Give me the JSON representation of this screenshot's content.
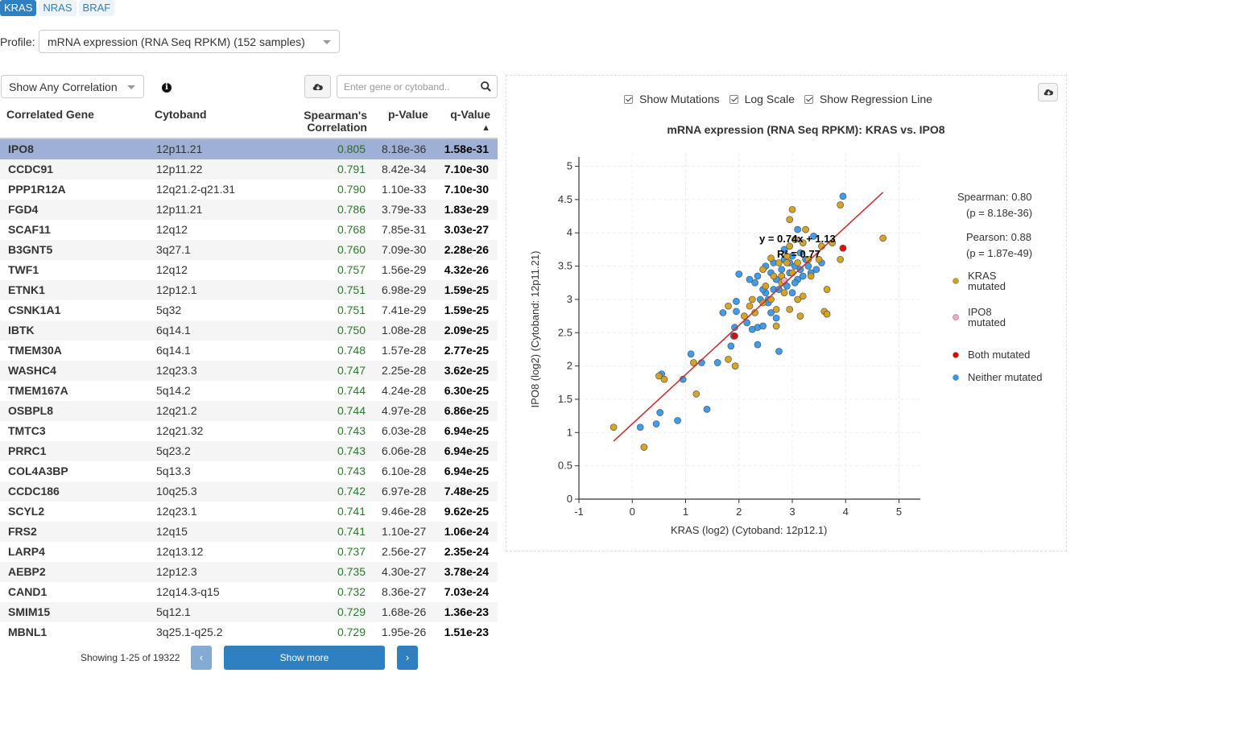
{
  "gene_tabs": [
    "KRAS",
    "NRAS",
    "BRAF"
  ],
  "active_gene_tab": 0,
  "profile": {
    "label": "Profile:",
    "selected": "mRNA expression (RNA Seq RPKM) (152 samples)"
  },
  "correlation_filter": {
    "selected": "Show Any Correlation"
  },
  "search": {
    "placeholder": "Enter gene or cytoband.."
  },
  "table": {
    "headers": {
      "gene": "Correlated Gene",
      "cytoband": "Cytoband",
      "spearman_line1": "Spearman's",
      "spearman_line2": "Correlation",
      "pvalue": "p-Value",
      "qvalue": "q-Value",
      "sort_indicator": "▲"
    },
    "rows": [
      {
        "gene": "IPO8",
        "cytoband": "12p11.21",
        "corr": "0.805",
        "p": "8.18e-36",
        "q": "1.58e-31"
      },
      {
        "gene": "CCDC91",
        "cytoband": "12p11.22",
        "corr": "0.791",
        "p": "8.42e-34",
        "q": "7.10e-30"
      },
      {
        "gene": "PPP1R12A",
        "cytoband": "12q21.2-q21.31",
        "corr": "0.790",
        "p": "1.10e-33",
        "q": "7.10e-30"
      },
      {
        "gene": "FGD4",
        "cytoband": "12p11.21",
        "corr": "0.786",
        "p": "3.79e-33",
        "q": "1.83e-29"
      },
      {
        "gene": "SCAF11",
        "cytoband": "12q12",
        "corr": "0.768",
        "p": "7.85e-31",
        "q": "3.03e-27"
      },
      {
        "gene": "B3GNT5",
        "cytoband": "3q27.1",
        "corr": "0.760",
        "p": "7.09e-30",
        "q": "2.28e-26"
      },
      {
        "gene": "TWF1",
        "cytoband": "12q12",
        "corr": "0.757",
        "p": "1.56e-29",
        "q": "4.32e-26"
      },
      {
        "gene": "ETNK1",
        "cytoband": "12p12.1",
        "corr": "0.751",
        "p": "6.98e-29",
        "q": "1.59e-25"
      },
      {
        "gene": "CSNK1A1",
        "cytoband": "5q32",
        "corr": "0.751",
        "p": "7.41e-29",
        "q": "1.59e-25"
      },
      {
        "gene": "IBTK",
        "cytoband": "6q14.1",
        "corr": "0.750",
        "p": "1.08e-28",
        "q": "2.09e-25"
      },
      {
        "gene": "TMEM30A",
        "cytoband": "6q14.1",
        "corr": "0.748",
        "p": "1.57e-28",
        "q": "2.77e-25"
      },
      {
        "gene": "WASHC4",
        "cytoband": "12q23.3",
        "corr": "0.747",
        "p": "2.25e-28",
        "q": "3.62e-25"
      },
      {
        "gene": "TMEM167A",
        "cytoband": "5q14.2",
        "corr": "0.744",
        "p": "4.24e-28",
        "q": "6.30e-25"
      },
      {
        "gene": "OSBPL8",
        "cytoband": "12q21.2",
        "corr": "0.744",
        "p": "4.97e-28",
        "q": "6.86e-25"
      },
      {
        "gene": "TMTC3",
        "cytoband": "12q21.32",
        "corr": "0.743",
        "p": "6.03e-28",
        "q": "6.94e-25"
      },
      {
        "gene": "PRRC1",
        "cytoband": "5q23.2",
        "corr": "0.743",
        "p": "6.06e-28",
        "q": "6.94e-25"
      },
      {
        "gene": "COL4A3BP",
        "cytoband": "5q13.3",
        "corr": "0.743",
        "p": "6.10e-28",
        "q": "6.94e-25"
      },
      {
        "gene": "CCDC186",
        "cytoband": "10q25.3",
        "corr": "0.742",
        "p": "6.97e-28",
        "q": "7.48e-25"
      },
      {
        "gene": "SCYL2",
        "cytoband": "12q23.1",
        "corr": "0.741",
        "p": "9.46e-28",
        "q": "9.62e-25"
      },
      {
        "gene": "FRS2",
        "cytoband": "12q15",
        "corr": "0.741",
        "p": "1.10e-27",
        "q": "1.06e-24"
      },
      {
        "gene": "LARP4",
        "cytoband": "12q13.12",
        "corr": "0.737",
        "p": "2.56e-27",
        "q": "2.35e-24"
      },
      {
        "gene": "AEBP2",
        "cytoband": "12p12.3",
        "corr": "0.735",
        "p": "4.30e-27",
        "q": "3.78e-24"
      },
      {
        "gene": "CAND1",
        "cytoband": "12q14.3-q15",
        "corr": "0.732",
        "p": "8.36e-27",
        "q": "7.03e-24"
      },
      {
        "gene": "SMIM15",
        "cytoband": "5q12.1",
        "corr": "0.729",
        "p": "1.68e-26",
        "q": "1.36e-23"
      },
      {
        "gene": "MBNL1",
        "cytoband": "3q25.1-q25.2",
        "corr": "0.729",
        "p": "1.95e-26",
        "q": "1.51e-23"
      }
    ],
    "selected_row": 0
  },
  "pagination": {
    "showing": "Showing 1-25 of 19322",
    "prev": "‹",
    "more": "Show more",
    "next": "›"
  },
  "plot_options": {
    "show_mutations": {
      "label": "Show Mutations",
      "checked": true
    },
    "log_scale": {
      "label": "Log Scale",
      "checked": true
    },
    "show_regression": {
      "label": "Show Regression Line",
      "checked": true
    }
  },
  "colors": {
    "accent": "#2f80c0",
    "kras_mutated": "#d4a017",
    "ipo8_mutated": "#f4a7c6",
    "both_mutated": "#e60000",
    "neither_mutated": "#3399ee",
    "regression": "#c83232",
    "corr_text": "#2a7a2a",
    "selected_row": "#9fb0d6"
  },
  "chart_data": {
    "type": "scatter",
    "title": "mRNA expression (RNA Seq RPKM): KRAS vs. IPO8",
    "xlabel": "KRAS (log2) (Cytoband: 12p12.1)",
    "ylabel": "IPO8 (log2) (Cytoband: 12p11.21)",
    "xlim": [
      -1,
      5.4
    ],
    "ylim": [
      0,
      5.2
    ],
    "xticks": [
      -1,
      0,
      1,
      2,
      3,
      4,
      5
    ],
    "yticks": [
      0,
      0.5,
      1,
      1.5,
      2,
      2.5,
      3,
      3.5,
      4,
      4.5,
      5
    ],
    "grid": true,
    "regression": {
      "slope": 0.74,
      "intercept": 1.13,
      "x_range": [
        -0.35,
        4.7
      ],
      "equation": "y = 0.74x + 1.13",
      "r2": "R² = 0.77"
    },
    "stats": {
      "spearman": "Spearman: 0.80",
      "spearman_p": "(p = 8.18e-36)",
      "pearson": "Pearson: 0.88",
      "pearson_p": "(p = 1.87e-49)"
    },
    "legend": [
      {
        "key": "kras",
        "line1": "KRAS",
        "line2": "mutated"
      },
      {
        "key": "ipo8",
        "line1": "IPO8",
        "line2": "mutated"
      },
      {
        "key": "both",
        "line1": "Both mutated",
        "line2": ""
      },
      {
        "key": "neither",
        "line1": "Neither mutated",
        "line2": ""
      }
    ],
    "series": [
      {
        "key": "kras",
        "points": [
          [
            -0.35,
            1.08
          ],
          [
            0.22,
            0.78
          ],
          [
            0.5,
            1.85
          ],
          [
            0.6,
            1.8
          ],
          [
            1.15,
            2.05
          ],
          [
            1.2,
            1.58
          ],
          [
            1.8,
            2.1
          ],
          [
            1.8,
            2.9
          ],
          [
            1.93,
            2.0
          ],
          [
            2.1,
            2.75
          ],
          [
            2.25,
            3.0
          ],
          [
            2.3,
            2.8
          ],
          [
            2.45,
            2.95
          ],
          [
            2.6,
            3.0
          ],
          [
            2.6,
            3.62
          ],
          [
            2.65,
            3.35
          ],
          [
            2.7,
            2.6
          ],
          [
            2.7,
            2.85
          ],
          [
            2.75,
            3.55
          ],
          [
            2.8,
            3.35
          ],
          [
            2.8,
            3.25
          ],
          [
            2.85,
            3.1
          ],
          [
            2.9,
            3.55
          ],
          [
            2.95,
            4.2
          ],
          [
            2.95,
            3.8
          ],
          [
            3.0,
            3.4
          ],
          [
            3.0,
            4.35
          ],
          [
            3.05,
            3.9
          ],
          [
            3.1,
            3.55
          ],
          [
            3.15,
            2.75
          ],
          [
            3.2,
            3.05
          ],
          [
            3.2,
            3.85
          ],
          [
            3.25,
            4.05
          ],
          [
            3.3,
            3.6
          ],
          [
            3.5,
            3.6
          ],
          [
            3.55,
            3.8
          ],
          [
            3.6,
            2.82
          ],
          [
            3.65,
            2.78
          ],
          [
            3.65,
            3.15
          ],
          [
            3.9,
            4.42
          ],
          [
            3.9,
            3.6
          ],
          [
            4.7,
            3.92
          ],
          [
            2.95,
            2.85
          ],
          [
            2.5,
            3.2
          ],
          [
            3.35,
            3.35
          ],
          [
            2.2,
            2.9
          ],
          [
            3.1,
            3.0
          ],
          [
            3.75,
            3.85
          ],
          [
            2.45,
            3.45
          ],
          [
            2.9,
            3.65
          ]
        ]
      },
      {
        "key": "ipo8",
        "points": [
          [
            2.85,
            3.28
          ]
        ]
      },
      {
        "key": "both",
        "points": [
          [
            1.92,
            2.45
          ],
          [
            3.95,
            3.77
          ]
        ]
      },
      {
        "key": "neither",
        "points": [
          [
            0.15,
            1.08
          ],
          [
            0.45,
            1.13
          ],
          [
            0.52,
            1.3
          ],
          [
            0.55,
            1.88
          ],
          [
            0.85,
            1.18
          ],
          [
            0.95,
            1.8
          ],
          [
            1.1,
            2.18
          ],
          [
            1.3,
            2.05
          ],
          [
            1.4,
            1.35
          ],
          [
            1.6,
            2.05
          ],
          [
            1.7,
            2.8
          ],
          [
            1.85,
            2.3
          ],
          [
            1.9,
            2.45
          ],
          [
            1.92,
            2.58
          ],
          [
            1.95,
            2.82
          ],
          [
            1.95,
            2.97
          ],
          [
            2.0,
            3.38
          ],
          [
            2.15,
            2.65
          ],
          [
            2.25,
            2.55
          ],
          [
            2.35,
            2.32
          ],
          [
            2.35,
            2.58
          ],
          [
            2.45,
            2.6
          ],
          [
            2.5,
            3.1
          ],
          [
            2.55,
            3.0
          ],
          [
            2.6,
            3.4
          ],
          [
            2.65,
            3.15
          ],
          [
            2.7,
            2.72
          ],
          [
            2.7,
            3.3
          ],
          [
            2.75,
            2.22
          ],
          [
            2.8,
            3.45
          ],
          [
            2.85,
            3.6
          ],
          [
            2.9,
            3.2
          ],
          [
            2.95,
            3.4
          ],
          [
            3.0,
            3.1
          ],
          [
            3.05,
            3.5
          ],
          [
            3.1,
            3.3
          ],
          [
            3.1,
            4.05
          ],
          [
            3.15,
            3.45
          ],
          [
            3.2,
            3.35
          ],
          [
            3.25,
            3.6
          ],
          [
            3.3,
            3.5
          ],
          [
            3.35,
            3.4
          ],
          [
            3.45,
            3.45
          ],
          [
            3.55,
            3.55
          ],
          [
            3.95,
            4.55
          ],
          [
            2.35,
            3.35
          ],
          [
            2.5,
            3.5
          ],
          [
            2.55,
            2.95
          ],
          [
            2.75,
            3.15
          ],
          [
            2.3,
            3.25
          ],
          [
            2.85,
            3.75
          ],
          [
            3.15,
            3.7
          ],
          [
            2.65,
            3.55
          ],
          [
            3.0,
            3.65
          ],
          [
            2.2,
            3.3
          ],
          [
            2.4,
            3.0
          ],
          [
            2.6,
            2.8
          ],
          [
            3.05,
            3.25
          ],
          [
            2.95,
            3.55
          ],
          [
            3.4,
            3.95
          ],
          [
            2.45,
            3.15
          ]
        ]
      }
    ]
  }
}
